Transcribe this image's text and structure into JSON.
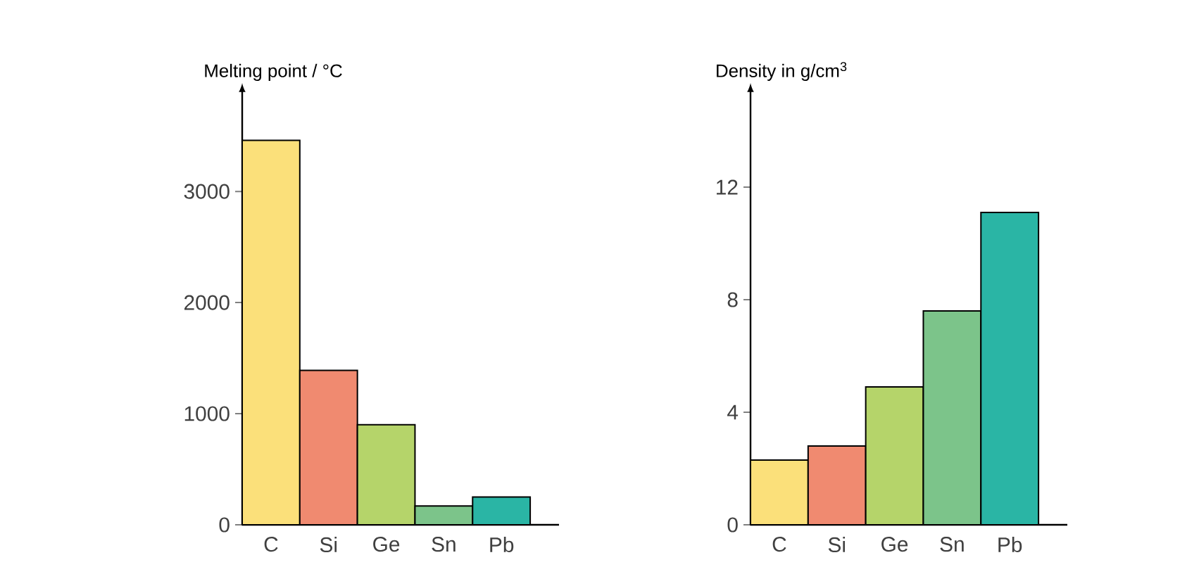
{
  "chart_data": [
    {
      "type": "bar",
      "ylabel": "Melting point / °C",
      "categories": [
        "C",
        "Si",
        "Ge",
        "Sn",
        "Pb"
      ],
      "values": [
        3460,
        1390,
        900,
        170,
        250
      ],
      "colors": [
        "#fbe07a",
        "#f08a70",
        "#b5d46a",
        "#7cc48a",
        "#2ab5a5"
      ],
      "ylim": [
        0,
        3900
      ],
      "yticks": [
        0,
        1000,
        2000,
        3000
      ]
    },
    {
      "type": "bar",
      "ylabel": "Density in g/cm$^{3}$",
      "categories": [
        "C",
        "Si",
        "Ge",
        "Sn",
        "Pb"
      ],
      "values": [
        2.3,
        2.8,
        4.9,
        7.6,
        11.1
      ],
      "colors": [
        "#fbe07a",
        "#f08a70",
        "#b5d46a",
        "#7cc48a",
        "#2ab5a5"
      ],
      "ylim": [
        0,
        15.4
      ],
      "yticks": [
        0,
        4,
        8,
        12
      ]
    }
  ]
}
